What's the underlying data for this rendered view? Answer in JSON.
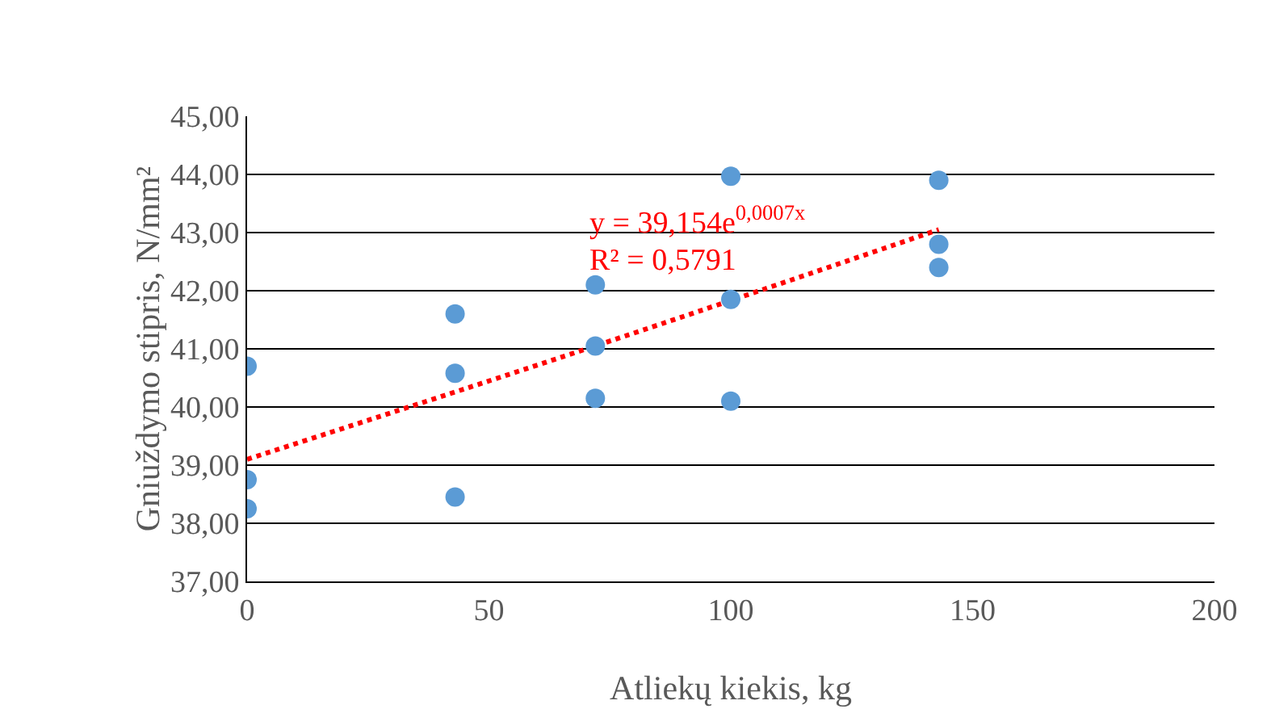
{
  "chart_data": {
    "type": "scatter",
    "xlabel": "Atliekų kiekis, kg",
    "ylabel": "Gniuždymo stipris, N/mm²",
    "xlim": [
      0,
      200
    ],
    "xticks": [
      0,
      50,
      100,
      150,
      200
    ],
    "ylim": [
      37,
      45
    ],
    "yticks": [
      {
        "value": 37,
        "label": "37,00"
      },
      {
        "value": 38,
        "label": "38,00"
      },
      {
        "value": 39,
        "label": "39,00"
      },
      {
        "value": 40,
        "label": "40,00"
      },
      {
        "value": 41,
        "label": "41,00"
      },
      {
        "value": 42,
        "label": "42,00"
      },
      {
        "value": 43,
        "label": "43,00"
      },
      {
        "value": 44,
        "label": "44,00"
      },
      {
        "value": 45,
        "label": "45,00"
      }
    ],
    "grid": "y",
    "marker": "circle",
    "series": [
      {
        "color": "#5b9bd5",
        "x": [
          0,
          0,
          0,
          43,
          43,
          43,
          72,
          72,
          72,
          100,
          100,
          100,
          143,
          143,
          143
        ],
        "values": [
          40.7,
          38.75,
          38.25,
          41.6,
          40.58,
          38.45,
          42.1,
          41.05,
          40.15,
          43.97,
          41.85,
          40.1,
          43.9,
          42.8,
          42.4
        ]
      },
      {
        "type": "line",
        "color": "#ff0000",
        "line_style": "dotted",
        "marker": "none",
        "x": [
          0,
          72,
          143
        ],
        "values": [
          39.1,
          41.05,
          43.05
        ]
      }
    ],
    "annotations": [
      "y = 39,154e$^{0,0007x}$",
      "R² = 0,5791"
    ]
  }
}
